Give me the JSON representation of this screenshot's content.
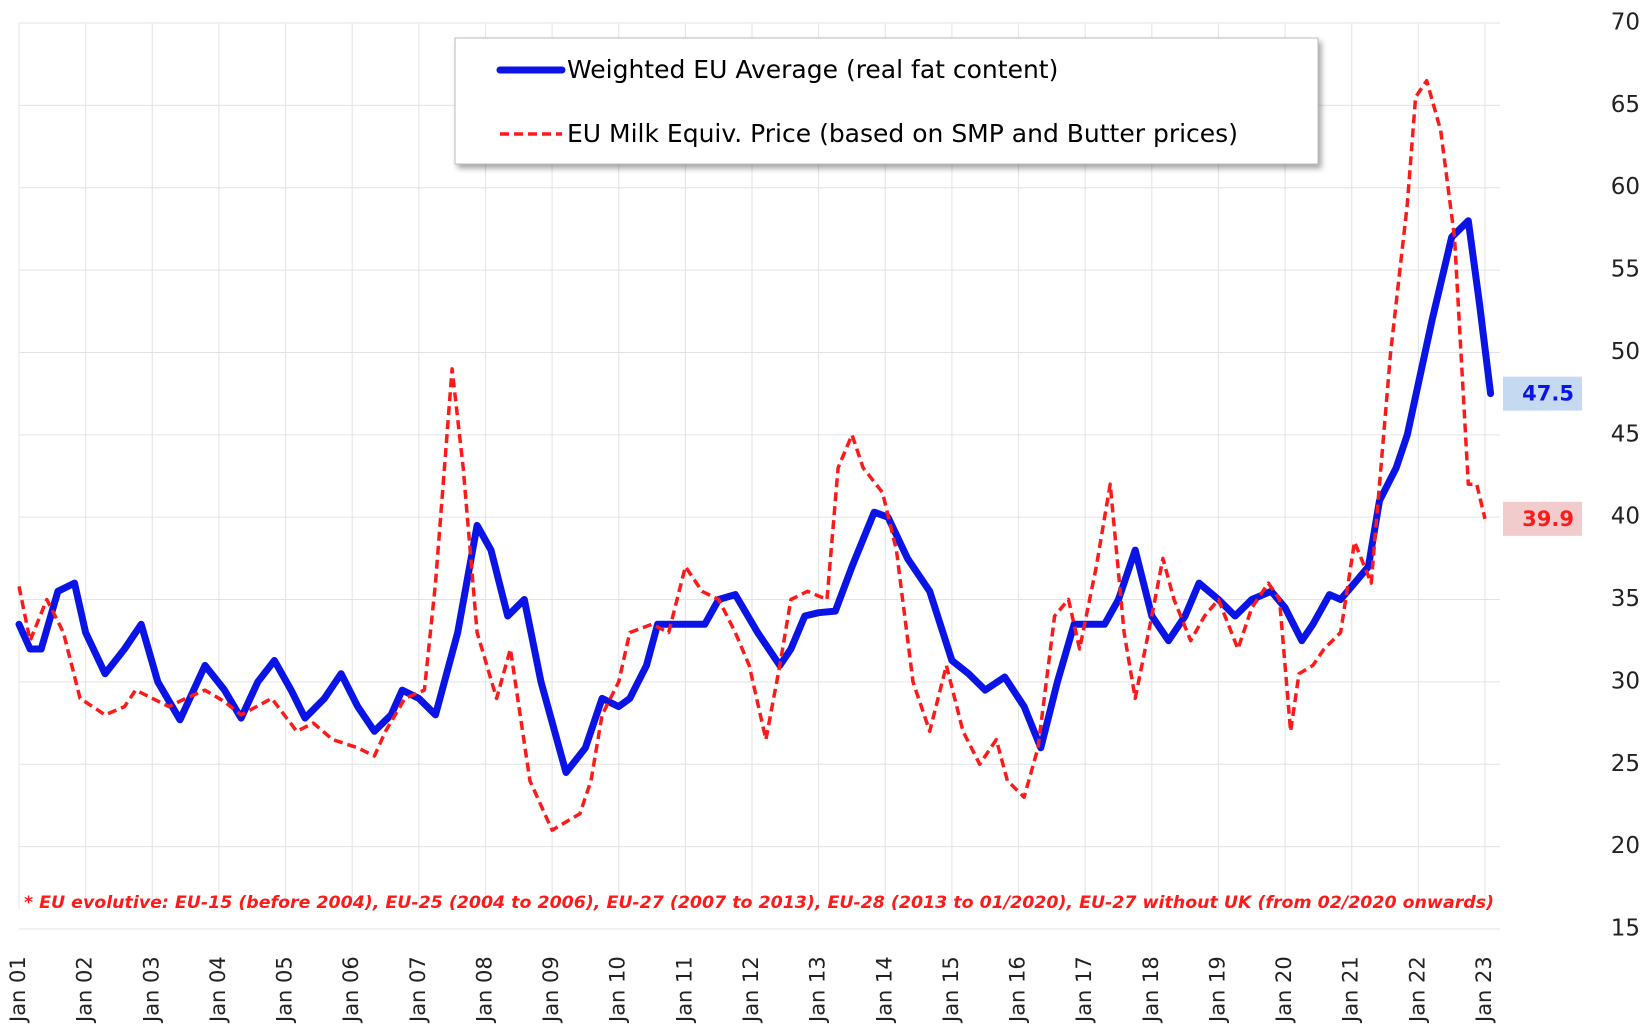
{
  "chart_data": {
    "type": "line",
    "note": "* EU evolutive: EU-15 (before  2004), EU-25 (2004 to 2006), EU-27 (2007 to 2013), EU-28 (2013 to 01/2020), EU-27 without  UK (from  02/2020 onwards)",
    "xlim": [
      0,
      264
    ],
    "xticks": [
      {
        "value": 0,
        "label": "Jan 01"
      },
      {
        "value": 12,
        "label": "Jan 02"
      },
      {
        "value": 24,
        "label": "Jan 03"
      },
      {
        "value": 36,
        "label": "Jan 04"
      },
      {
        "value": 48,
        "label": "Jan 05"
      },
      {
        "value": 60,
        "label": "Jan 06"
      },
      {
        "value": 72,
        "label": "Jan 07"
      },
      {
        "value": 84,
        "label": "Jan 08"
      },
      {
        "value": 96,
        "label": "Jan 09"
      },
      {
        "value": 108,
        "label": "Jan 10"
      },
      {
        "value": 120,
        "label": "Jan 11"
      },
      {
        "value": 132,
        "label": "Jan 12"
      },
      {
        "value": 144,
        "label": "Jan 13"
      },
      {
        "value": 156,
        "label": "Jan 14"
      },
      {
        "value": 168,
        "label": "Jan 15"
      },
      {
        "value": 180,
        "label": "Jan 16"
      },
      {
        "value": 192,
        "label": "Jan 17"
      },
      {
        "value": 204,
        "label": "Jan 18"
      },
      {
        "value": 216,
        "label": "Jan 19"
      },
      {
        "value": 228,
        "label": "Jan 20"
      },
      {
        "value": 240,
        "label": "Jan 21"
      },
      {
        "value": 252,
        "label": "Jan 22"
      },
      {
        "value": 264,
        "label": "Jan 23"
      }
    ],
    "ylim": [
      15,
      70
    ],
    "yticks": [
      15,
      20,
      25,
      30,
      35,
      40,
      45,
      50,
      55,
      60,
      65,
      70
    ],
    "grid": true,
    "series": [
      {
        "name": "Weighted EU Average (real fat content)",
        "color": "#0a14e6",
        "end_label": "47.5",
        "x": [
          0,
          2,
          4,
          7,
          10,
          12,
          15.5,
          19,
          22,
          25,
          29,
          33.5,
          37,
          40,
          43,
          46,
          49,
          51.5,
          55,
          58,
          61,
          64,
          67,
          69,
          72,
          75,
          79,
          82.5,
          85,
          88,
          91,
          94,
          98.5,
          102,
          105,
          108,
          110,
          113,
          115,
          119,
          123.5,
          126,
          129,
          133,
          137,
          139,
          141.5,
          144,
          147,
          150,
          154,
          156.5,
          160,
          164,
          168,
          171,
          174,
          177.5,
          181,
          184,
          187,
          190,
          195.5,
          198,
          201,
          204,
          207,
          210,
          212.5,
          216,
          219,
          222,
          225.5,
          228,
          231,
          233,
          236,
          238,
          240.5,
          243,
          245,
          248,
          250,
          254.5,
          258,
          261,
          263,
          265
        ],
        "values": [
          33.5,
          32,
          32,
          35.5,
          36,
          33,
          30.5,
          32,
          33.5,
          30,
          27.7,
          31,
          29.5,
          27.8,
          30,
          31.3,
          29.5,
          27.8,
          29,
          30.5,
          28.5,
          27,
          28,
          29.5,
          29,
          28,
          33,
          39.5,
          38,
          34,
          35,
          30,
          24.5,
          26,
          29,
          28.5,
          29,
          31,
          33.5,
          33.5,
          33.5,
          35,
          35.3,
          33,
          31,
          32,
          34,
          34.2,
          34.3,
          37,
          40.3,
          40,
          37.5,
          35.5,
          31.3,
          30.5,
          29.5,
          30.3,
          28.5,
          26,
          30,
          33.5,
          33.5,
          35,
          38,
          34,
          32.5,
          34,
          36,
          35,
          34,
          35,
          35.5,
          34.5,
          32.5,
          33.5,
          35.3,
          35,
          36,
          37,
          41,
          43,
          45,
          52,
          57,
          58,
          53,
          47.5
        ]
      },
      {
        "name": "EU Milk Equiv. Price (based on SMP and Butter prices)",
        "color": "#ff1a1a",
        "end_label": "39.9",
        "x": [
          0,
          2,
          5,
          8,
          11,
          15.5,
          19,
          21,
          27,
          30,
          33.5,
          37,
          40,
          45.5,
          50,
          53,
          56.5,
          61,
          64,
          66,
          69.5,
          73,
          75,
          78,
          80,
          82.5,
          86,
          88.5,
          92,
          96,
          101,
          103,
          105,
          108,
          110,
          114,
          117,
          120,
          123,
          126,
          129,
          131.5,
          134.5,
          137,
          139,
          142,
          145.5,
          147.5,
          150,
          152,
          155.5,
          158,
          161,
          164,
          167,
          170,
          173,
          176,
          178,
          181,
          183.5,
          186.5,
          189,
          191,
          194,
          196.5,
          199,
          201,
          204,
          206,
          208,
          211,
          213.5,
          216,
          219.5,
          222,
          225,
          227,
          229,
          230.5,
          233,
          235,
          238,
          240.5,
          243.5,
          247,
          250,
          251.5,
          253.5,
          256,
          258.5,
          261,
          262.5,
          264
        ],
        "values": [
          35.8,
          32.5,
          35,
          33,
          29,
          28,
          28.5,
          29.5,
          28.5,
          29,
          29.5,
          28.8,
          28,
          29,
          27,
          27.5,
          26.5,
          26,
          25.5,
          27,
          29,
          29.5,
          36,
          49,
          43,
          33,
          29,
          32,
          24,
          21,
          22,
          24,
          28,
          30,
          33,
          33.5,
          33,
          37,
          35.5,
          35,
          33,
          31,
          26.5,
          31,
          35,
          35.5,
          35,
          43,
          45,
          43,
          41.5,
          38,
          30,
          27,
          31,
          27,
          25,
          26.5,
          24,
          23,
          26,
          34,
          35,
          32,
          37,
          42,
          33,
          29,
          34,
          37.5,
          35,
          32.5,
          34,
          35,
          32,
          34.5,
          36,
          35,
          27,
          30.5,
          31,
          32,
          33,
          38.5,
          36,
          50,
          59,
          65.5,
          66.5,
          63.5,
          57,
          42,
          42,
          39.9
        ]
      }
    ]
  }
}
